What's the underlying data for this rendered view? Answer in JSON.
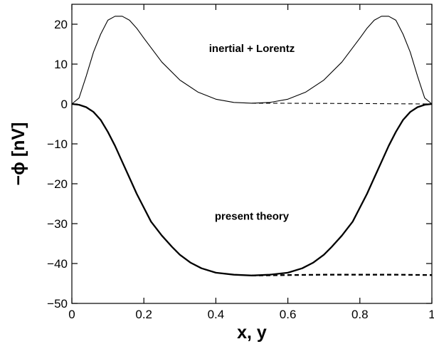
{
  "chart_data": {
    "type": "line",
    "xlabel": "x, y",
    "ylabel": "−ϕ [nV]",
    "xlim": [
      0,
      1
    ],
    "ylim": [
      -50,
      25
    ],
    "x_ticks": [
      0,
      0.2,
      0.4,
      0.6,
      0.8,
      1
    ],
    "x_tick_labels": [
      "0",
      "0.2",
      "0.4",
      "0.6",
      "0.8",
      "1"
    ],
    "y_ticks": [
      -50,
      -40,
      -30,
      -20,
      -10,
      0,
      10,
      20
    ],
    "y_tick_labels": [
      "−50",
      "−40",
      "−30",
      "−20",
      "−10",
      "0",
      "10",
      "20"
    ],
    "grid": false,
    "annotations": [
      {
        "text": "inertial + Lorentz",
        "x": 0.5,
        "y": 13
      },
      {
        "text": "present theory",
        "x": 0.5,
        "y": -29
      }
    ],
    "series": [
      {
        "style": "solid",
        "width": "thin",
        "x": [
          0,
          0.02,
          0.04,
          0.06,
          0.08,
          0.1,
          0.12,
          0.14,
          0.16,
          0.18,
          0.2,
          0.25,
          0.3,
          0.35,
          0.4,
          0.45,
          0.5,
          0.55,
          0.6,
          0.65,
          0.7,
          0.75,
          0.8,
          0.82,
          0.84,
          0.86,
          0.88,
          0.9,
          0.92,
          0.94,
          0.96,
          0.98,
          1
        ],
        "y": [
          0,
          1.5,
          7,
          13,
          17.5,
          21,
          22,
          22,
          21,
          19,
          16.5,
          10.5,
          6,
          3,
          1.2,
          0.4,
          0.2,
          0.4,
          1.2,
          3,
          6,
          10.5,
          16.5,
          19,
          21,
          22,
          22,
          21,
          17.5,
          13,
          7,
          1.5,
          0
        ]
      },
      {
        "style": "dashed",
        "width": "thin",
        "x": [
          0.5,
          0.6,
          0.7,
          0.8,
          0.9,
          1
        ],
        "y": [
          0.2,
          0.18,
          0.14,
          0.1,
          0.05,
          0
        ]
      },
      {
        "style": "solid",
        "width": "thick",
        "x": [
          0,
          0.02,
          0.04,
          0.06,
          0.08,
          0.1,
          0.12,
          0.14,
          0.16,
          0.18,
          0.2,
          0.22,
          0.25,
          0.28,
          0.3,
          0.33,
          0.36,
          0.4,
          0.45,
          0.5,
          0.55,
          0.6,
          0.64,
          0.67,
          0.7,
          0.72,
          0.75,
          0.78,
          0.8,
          0.82,
          0.84,
          0.86,
          0.88,
          0.9,
          0.92,
          0.94,
          0.96,
          0.98,
          1
        ],
        "y": [
          0,
          -0.2,
          -0.8,
          -2,
          -4,
          -7,
          -10.5,
          -14.5,
          -18.5,
          -22.5,
          -26,
          -29.5,
          -33,
          -36,
          -37.8,
          -39.8,
          -41.2,
          -42.3,
          -42.8,
          -43,
          -42.8,
          -42.3,
          -41.2,
          -39.8,
          -37.8,
          -36,
          -33,
          -29.5,
          -26,
          -22.5,
          -18.5,
          -14.5,
          -10.5,
          -7,
          -4,
          -2,
          -0.8,
          -0.2,
          0
        ]
      },
      {
        "style": "dashed",
        "width": "thick",
        "x": [
          0.5,
          0.6,
          0.7,
          0.8,
          0.9,
          1
        ],
        "y": [
          -43,
          -42.9,
          -42.8,
          -42.8,
          -42.8,
          -42.9
        ]
      }
    ]
  }
}
